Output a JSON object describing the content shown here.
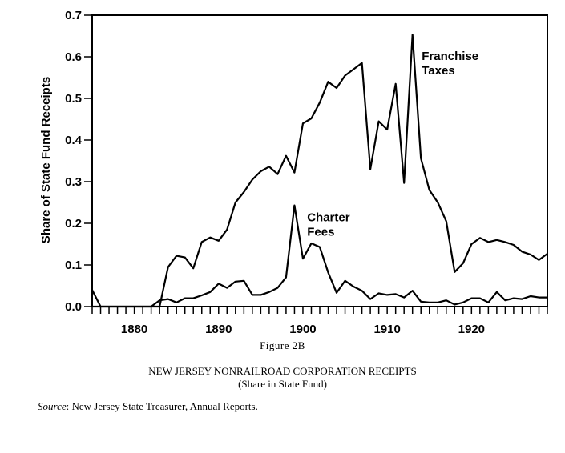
{
  "figure": {
    "label": "Figure 2B",
    "title": "NEW JERSEY NONRAILROAD CORPORATION RECEIPTS",
    "subtitle": "(Share in State Fund)",
    "source_label": "Source",
    "source_text": ": New Jersey State Treasurer, Annual Reports."
  },
  "chart_data": {
    "type": "line",
    "title": "NEW JERSEY NONRAILROAD CORPORATION RECEIPTS",
    "subtitle": "(Share in State Fund)",
    "xlabel": "",
    "ylabel": "Share of State Fund Receipts",
    "xlim": [
      1875,
      1929
    ],
    "ylim": [
      0,
      0.7
    ],
    "grid": false,
    "x_ticks": [
      1880,
      1890,
      1900,
      1910,
      1920
    ],
    "x_tick_labels": [
      "1880",
      "1890",
      "1900",
      "1910",
      "1920"
    ],
    "y_ticks": [
      0.0,
      0.1,
      0.2,
      0.3,
      0.4,
      0.5,
      0.6,
      0.7
    ],
    "y_tick_labels": [
      "0.0",
      "0.1",
      "0.2",
      "0.3",
      "0.4",
      "0.5",
      "0.6",
      "0.7"
    ],
    "series": [
      {
        "name": "Franchise Taxes",
        "label_lines": [
          "Franchise",
          "Taxes"
        ],
        "x": [
          1875,
          1876,
          1877,
          1878,
          1879,
          1880,
          1881,
          1882,
          1883,
          1884,
          1885,
          1886,
          1887,
          1888,
          1889,
          1890,
          1891,
          1892,
          1893,
          1894,
          1895,
          1896,
          1897,
          1898,
          1899,
          1900,
          1901,
          1902,
          1903,
          1904,
          1905,
          1906,
          1907,
          1908,
          1909,
          1910,
          1911,
          1912,
          1913,
          1914,
          1915,
          1916,
          1917,
          1918,
          1919,
          1920,
          1921,
          1922,
          1923,
          1924,
          1925,
          1926,
          1927,
          1928,
          1929
        ],
        "values": [
          0.0,
          0.0,
          0.0,
          0.0,
          0.0,
          0.0,
          0.0,
          0.0,
          0.0,
          0.095,
          0.122,
          0.118,
          0.092,
          0.155,
          0.166,
          0.158,
          0.185,
          0.25,
          0.275,
          0.305,
          0.325,
          0.336,
          0.318,
          0.362,
          0.322,
          0.44,
          0.452,
          0.49,
          0.54,
          0.525,
          0.555,
          0.57,
          0.585,
          0.33,
          0.445,
          0.425,
          0.535,
          0.297,
          0.653,
          0.356,
          0.28,
          0.25,
          0.205,
          0.083,
          0.104,
          0.15,
          0.165,
          0.155,
          0.16,
          0.155,
          0.148,
          0.132,
          0.125,
          0.112,
          0.127
        ]
      },
      {
        "name": "Charter Fees",
        "label_lines": [
          "Charter",
          "Fees"
        ],
        "x": [
          1875,
          1876,
          1877,
          1878,
          1879,
          1880,
          1881,
          1882,
          1883,
          1884,
          1885,
          1886,
          1887,
          1888,
          1889,
          1890,
          1891,
          1892,
          1893,
          1894,
          1895,
          1896,
          1897,
          1898,
          1899,
          1900,
          1901,
          1902,
          1903,
          1904,
          1905,
          1906,
          1907,
          1908,
          1909,
          1910,
          1911,
          1912,
          1913,
          1914,
          1915,
          1916,
          1917,
          1918,
          1919,
          1920,
          1921,
          1922,
          1923,
          1924,
          1925,
          1926,
          1927,
          1928,
          1929
        ],
        "values": [
          0.04,
          0.0,
          0.0,
          0.0,
          0.0,
          0.0,
          0.0,
          0.0,
          0.015,
          0.018,
          0.01,
          0.02,
          0.02,
          0.027,
          0.035,
          0.055,
          0.045,
          0.06,
          0.062,
          0.028,
          0.028,
          0.035,
          0.045,
          0.07,
          0.243,
          0.115,
          0.152,
          0.143,
          0.082,
          0.033,
          0.062,
          0.048,
          0.038,
          0.018,
          0.032,
          0.028,
          0.03,
          0.022,
          0.038,
          0.012,
          0.01,
          0.01,
          0.015,
          0.005,
          0.01,
          0.02,
          0.02,
          0.01,
          0.035,
          0.015,
          0.02,
          0.018,
          0.025,
          0.022,
          0.022
        ]
      }
    ]
  }
}
